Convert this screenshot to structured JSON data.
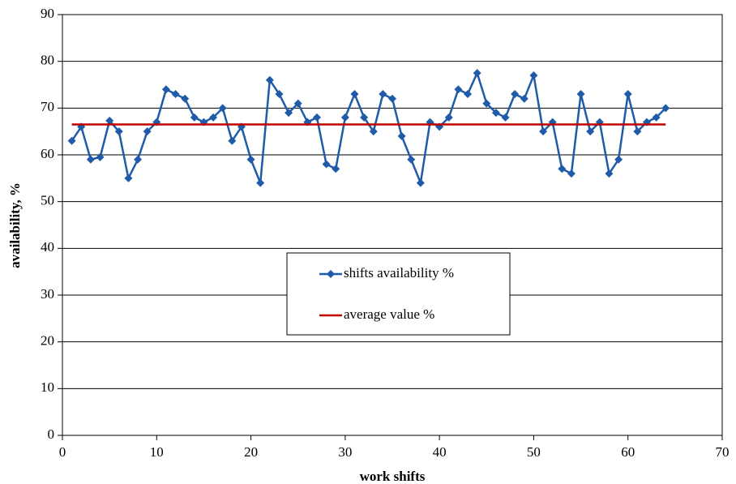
{
  "chart_data": {
    "type": "line",
    "xlabel": "work shifts",
    "ylabel": "availability, %",
    "xlim": [
      0,
      70
    ],
    "xticks": [
      0,
      10,
      20,
      30,
      40,
      50,
      60,
      70
    ],
    "ylim": [
      0,
      90
    ],
    "yticks": [
      0,
      10,
      20,
      30,
      40,
      50,
      60,
      70,
      80,
      90
    ],
    "grid": true,
    "legend": "center",
    "series": [
      {
        "name": "shifts availability %",
        "color": "#1f5ba8",
        "marker": "diamond",
        "x": [
          1,
          2,
          3,
          4,
          5,
          6,
          7,
          8,
          9,
          10,
          11,
          12,
          13,
          14,
          15,
          16,
          17,
          18,
          19,
          20,
          21,
          22,
          23,
          24,
          25,
          26,
          27,
          28,
          29,
          30,
          31,
          32,
          33,
          34,
          35,
          36,
          37,
          38,
          39,
          40,
          41,
          42,
          43,
          44,
          45,
          46,
          47,
          48,
          49,
          50,
          51,
          52,
          53,
          54,
          55,
          56,
          57,
          58,
          59,
          60,
          61,
          62,
          63,
          64
        ],
        "values": [
          63,
          66,
          59,
          59.5,
          67.3,
          65,
          55,
          59,
          65,
          67,
          74,
          73,
          72,
          68,
          67,
          68,
          70,
          63,
          66,
          59,
          54,
          76,
          73,
          69,
          71,
          67,
          68,
          58,
          57,
          68,
          73,
          68,
          65,
          73,
          72,
          64,
          59,
          54,
          67,
          66,
          68,
          74,
          73,
          77.5,
          71,
          69,
          68,
          73,
          72,
          77,
          65,
          67,
          57,
          56,
          73,
          65,
          67,
          56,
          59,
          73,
          65,
          67,
          68,
          70
        ]
      },
      {
        "name": "average value %",
        "color": "#c00000",
        "marker": "none",
        "x": [
          1,
          64
        ],
        "values": [
          66.5,
          66.5
        ]
      }
    ]
  }
}
